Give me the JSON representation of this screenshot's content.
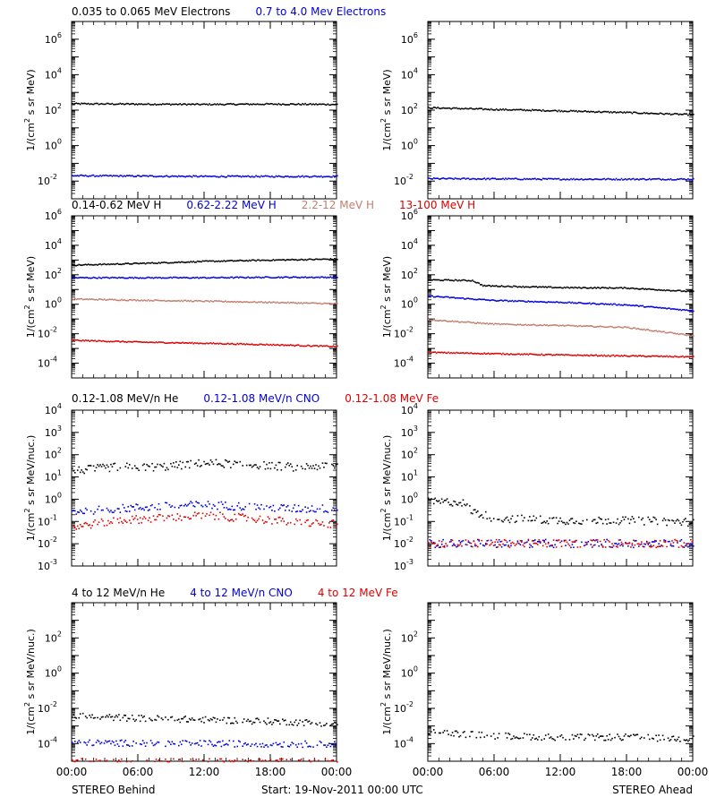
{
  "colors": {
    "black": "#000000",
    "blue": "#0000dd",
    "tan": "#c08070",
    "red": "#dd0000"
  },
  "footer": {
    "left": "STEREO Behind",
    "center": "Start: 19-Nov-2011 00:00 UTC",
    "right": "STEREO Ahead"
  },
  "rows": [
    {
      "headers": [
        {
          "text": "0.035 to 0.065 MeV Electrons",
          "color": "black"
        },
        {
          "text": "0.7 to 4.0 Mev Electrons",
          "color": "blue"
        }
      ],
      "ylabel_main": "1/(cm",
      "ylabel_sup": "2",
      "ylabel_rest": " s sr MeV)",
      "log_min": -3,
      "log_max": 7,
      "ticks": [
        {
          "log": -2,
          "label": "10",
          "exp": "-2"
        },
        {
          "log": 0,
          "label": "10",
          "exp": "0"
        },
        {
          "log": 2,
          "label": "10",
          "exp": "2"
        },
        {
          "log": 4,
          "label": "10",
          "exp": "4"
        },
        {
          "log": 6,
          "label": "10",
          "exp": "6"
        }
      ]
    },
    {
      "headers": [
        {
          "text": "0.14-0.62 MeV H",
          "color": "black"
        },
        {
          "text": "0.62-2.22 MeV H",
          "color": "blue"
        },
        {
          "text": "2.2-12 MeV H",
          "color": "tan"
        },
        {
          "text": "13-100 MeV H",
          "color": "red"
        }
      ],
      "ylabel_main": "1/(cm",
      "ylabel_sup": "2",
      "ylabel_rest": " s sr MeV)",
      "log_min": -5,
      "log_max": 6,
      "ticks": [
        {
          "log": -4,
          "label": "10",
          "exp": "-4"
        },
        {
          "log": -2,
          "label": "10",
          "exp": "-2"
        },
        {
          "log": 0,
          "label": "10",
          "exp": "0"
        },
        {
          "log": 2,
          "label": "10",
          "exp": "2"
        },
        {
          "log": 4,
          "label": "10",
          "exp": "4"
        },
        {
          "log": 6,
          "label": "10",
          "exp": "6"
        }
      ]
    },
    {
      "headers": [
        {
          "text": "0.12-1.08 MeV/n He",
          "color": "black"
        },
        {
          "text": "0.12-1.08 MeV/n CNO",
          "color": "blue"
        },
        {
          "text": "0.12-1.08 MeV Fe",
          "color": "red"
        }
      ],
      "ylabel_main": "1/(cm",
      "ylabel_sup": "2",
      "ylabel_rest": " s sr MeV/nuc.)",
      "log_min": -3,
      "log_max": 4,
      "ticks": [
        {
          "log": -3,
          "label": "10",
          "exp": "-3"
        },
        {
          "log": -2,
          "label": "10",
          "exp": "-2"
        },
        {
          "log": -1,
          "label": "10",
          "exp": "-1"
        },
        {
          "log": 0,
          "label": "10",
          "exp": "0"
        },
        {
          "log": 1,
          "label": "10",
          "exp": "1"
        },
        {
          "log": 2,
          "label": "10",
          "exp": "2"
        },
        {
          "log": 3,
          "label": "10",
          "exp": "3"
        },
        {
          "log": 4,
          "label": "10",
          "exp": "4"
        }
      ]
    },
    {
      "headers": [
        {
          "text": "4 to 12 MeV/n He",
          "color": "black"
        },
        {
          "text": "4 to 12 MeV/n CNO",
          "color": "blue"
        },
        {
          "text": "4 to 12 MeV Fe",
          "color": "red"
        }
      ],
      "ylabel_main": "1/(cm",
      "ylabel_sup": "2",
      "ylabel_rest": " s sr MeV/nuc.)",
      "log_min": -5,
      "log_max": 4,
      "ticks": [
        {
          "log": -4,
          "label": "10",
          "exp": "-4"
        },
        {
          "log": -2,
          "label": "10",
          "exp": "-2"
        },
        {
          "log": 0,
          "label": "10",
          "exp": "0"
        },
        {
          "log": 2,
          "label": "10",
          "exp": "2"
        }
      ]
    }
  ],
  "x_ticks": [
    "00:00",
    "06:00",
    "12:00",
    "18:00",
    "00:00"
  ],
  "chart_data": {
    "type": "scatter",
    "x_unit": "hours since start",
    "x_range": [
      0,
      24
    ],
    "y_scale": "log",
    "panels": [
      {
        "row": 0,
        "col": 0,
        "series": [
          {
            "name": "0.035 to 0.065 MeV Electrons",
            "color": "black",
            "points": [
              [
                0,
                250
              ],
              [
                6,
                240
              ],
              [
                12,
                230
              ],
              [
                18,
                240
              ],
              [
                24,
                230
              ]
            ]
          },
          {
            "name": "0.7 to 4.0 Mev Electrons",
            "color": "blue",
            "points": [
              [
                0,
                0.022
              ],
              [
                12,
                0.02
              ],
              [
                24,
                0.02
              ]
            ]
          }
        ]
      },
      {
        "row": 0,
        "col": 1,
        "series": [
          {
            "name": "0.035 to 0.065 MeV Electrons",
            "color": "black",
            "points": [
              [
                0,
                150
              ],
              [
                6,
                120
              ],
              [
                12,
                100
              ],
              [
                18,
                80
              ],
              [
                24,
                60
              ]
            ]
          },
          {
            "name": "0.7 to 4.0 Mev Electrons",
            "color": "blue",
            "points": [
              [
                0,
                0.015
              ],
              [
                12,
                0.014
              ],
              [
                24,
                0.014
              ]
            ]
          }
        ]
      },
      {
        "row": 1,
        "col": 0,
        "series": [
          {
            "name": "0.14-0.62 MeV H",
            "color": "black",
            "points": [
              [
                0,
                500
              ],
              [
                6,
                650
              ],
              [
                12,
                900
              ],
              [
                18,
                1100
              ],
              [
                24,
                1300
              ]
            ]
          },
          {
            "name": "0.62-2.22 MeV H",
            "color": "blue",
            "points": [
              [
                0,
                70
              ],
              [
                6,
                70
              ],
              [
                12,
                70
              ],
              [
                18,
                75
              ],
              [
                24,
                75
              ]
            ]
          },
          {
            "name": "2.2-12 MeV H",
            "color": "tan",
            "points": [
              [
                0,
                2.5
              ],
              [
                6,
                2.1
              ],
              [
                12,
                1.8
              ],
              [
                18,
                1.5
              ],
              [
                24,
                1.2
              ]
            ]
          },
          {
            "name": "13-100 MeV H",
            "color": "red",
            "points": [
              [
                0,
                0.004
              ],
              [
                6,
                0.003
              ],
              [
                12,
                0.0025
              ],
              [
                18,
                0.002
              ],
              [
                24,
                0.0015
              ]
            ]
          }
        ]
      },
      {
        "row": 1,
        "col": 1,
        "series": [
          {
            "name": "0.14-0.62 MeV H",
            "color": "black",
            "points": [
              [
                0,
                50
              ],
              [
                4,
                45
              ],
              [
                5,
                20
              ],
              [
                12,
                15
              ],
              [
                18,
                14
              ],
              [
                24,
                8
              ]
            ]
          },
          {
            "name": "0.62-2.22 MeV H",
            "color": "blue",
            "points": [
              [
                0,
                4
              ],
              [
                6,
                2
              ],
              [
                12,
                1.5
              ],
              [
                18,
                1
              ],
              [
                24,
                0.4
              ]
            ]
          },
          {
            "name": "2.2-12 MeV H",
            "color": "tan",
            "points": [
              [
                0,
                0.1
              ],
              [
                6,
                0.05
              ],
              [
                12,
                0.04
              ],
              [
                18,
                0.03
              ],
              [
                24,
                0.008
              ]
            ]
          },
          {
            "name": "13-100 MeV H",
            "color": "red",
            "points": [
              [
                0,
                0.0006
              ],
              [
                12,
                0.0004
              ],
              [
                24,
                0.0003
              ]
            ]
          }
        ]
      },
      {
        "row": 2,
        "col": 0,
        "series": [
          {
            "name": "0.12-1.08 MeV/n He",
            "color": "black",
            "points": [
              [
                0,
                20
              ],
              [
                4,
                30
              ],
              [
                8,
                30
              ],
              [
                12,
                45
              ],
              [
                16,
                40
              ],
              [
                20,
                30
              ],
              [
                24,
                35
              ]
            ]
          },
          {
            "name": "0.12-1.08 MeV/n CNO",
            "color": "blue",
            "points": [
              [
                0,
                0.3
              ],
              [
                4,
                0.4
              ],
              [
                8,
                0.5
              ],
              [
                12,
                0.6
              ],
              [
                16,
                0.5
              ],
              [
                20,
                0.4
              ],
              [
                24,
                0.4
              ]
            ]
          },
          {
            "name": "0.12-1.08 MeV Fe",
            "color": "red",
            "points": [
              [
                0,
                0.06
              ],
              [
                4,
                0.12
              ],
              [
                8,
                0.15
              ],
              [
                12,
                0.2
              ],
              [
                16,
                0.15
              ],
              [
                20,
                0.1
              ],
              [
                24,
                0.08
              ]
            ]
          }
        ]
      },
      {
        "row": 2,
        "col": 1,
        "series": [
          {
            "name": "0.12-1.08 MeV/n He",
            "color": "black",
            "points": [
              [
                0,
                0.8
              ],
              [
                3,
                0.8
              ],
              [
                4,
                0.3
              ],
              [
                6,
                0.15
              ],
              [
                12,
                0.12
              ],
              [
                18,
                0.12
              ],
              [
                24,
                0.1
              ]
            ]
          },
          {
            "name": "0.12-1.08 MeV/n CNO",
            "color": "blue",
            "points": [
              [
                0,
                0.011
              ],
              [
                24,
                0.011
              ]
            ]
          },
          {
            "name": "0.12-1.08 MeV Fe",
            "color": "red",
            "points": [
              [
                0,
                0.011
              ],
              [
                24,
                0.011
              ]
            ]
          }
        ]
      },
      {
        "row": 3,
        "col": 0,
        "series": [
          {
            "name": "4 to 12 MeV/n He",
            "color": "black",
            "points": [
              [
                0,
                0.004
              ],
              [
                6,
                0.003
              ],
              [
                12,
                0.0025
              ],
              [
                18,
                0.002
              ],
              [
                24,
                0.0015
              ]
            ]
          },
          {
            "name": "4 to 12 MeV/n CNO",
            "color": "blue",
            "points": [
              [
                0,
                0.00012
              ],
              [
                12,
                0.00011
              ],
              [
                24,
                0.0001
              ]
            ]
          },
          {
            "name": "4 to 12 MeV Fe",
            "color": "red",
            "points": [
              [
                0,
                1e-05
              ],
              [
                24,
                1e-05
              ]
            ]
          }
        ]
      },
      {
        "row": 3,
        "col": 1,
        "series": [
          {
            "name": "4 to 12 MeV/n He",
            "color": "black",
            "points": [
              [
                0,
                0.0005
              ],
              [
                6,
                0.0003
              ],
              [
                12,
                0.00025
              ],
              [
                18,
                0.00025
              ],
              [
                24,
                0.0002
              ]
            ]
          }
        ]
      }
    ]
  }
}
